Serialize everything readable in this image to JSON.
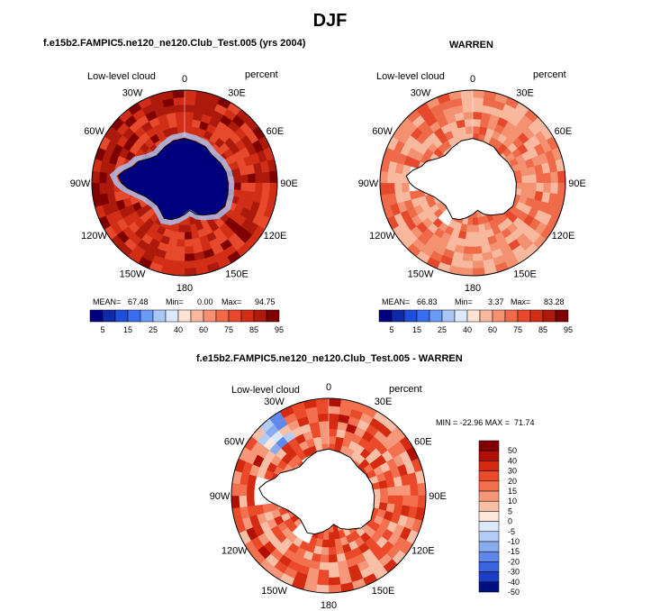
{
  "chart_data": {
    "type": "polar_map",
    "title": "DJF",
    "panels": [
      {
        "id": "model",
        "title": "f.e15b2.FAMPIC5.ne120_ne120.Club_Test.005 (yrs 2004)",
        "left_label": "Low-level cloud",
        "right_label": "percent",
        "mean_label": "MEAN=",
        "mean": "67.48",
        "min_label": "Min=",
        "min": "0.00",
        "max_label": "Max=",
        "max": "94.75",
        "colorbar_ticks": [
          "5",
          "15",
          "25",
          "40",
          "60",
          "75",
          "85",
          "95"
        ]
      },
      {
        "id": "obs",
        "title": "WARREN",
        "left_label": "Low-level cloud",
        "right_label": "percent",
        "mean_label": "MEAN=",
        "mean": "66.83",
        "min_label": "Min=",
        "min": "3.37",
        "max_label": "Max=",
        "max": "83.28",
        "colorbar_ticks": [
          "5",
          "15",
          "25",
          "40",
          "60",
          "75",
          "85",
          "95"
        ]
      },
      {
        "id": "diff",
        "title": "f.e15b2.FAMPIC5.ne120_ne120.Club_Test.005 - WARREN",
        "left_label": "Low-level cloud",
        "right_label": "percent",
        "min_max_text": "MIN = -22.96 MAX =  71.74",
        "colorbar_ticks": [
          "50",
          "40",
          "30",
          "20",
          "15",
          "10",
          "5",
          "0",
          "-5",
          "-10",
          "-15",
          "-20",
          "-30",
          "-40",
          "-50"
        ]
      }
    ],
    "longitude_labels": [
      "0",
      "30E",
      "60E",
      "90E",
      "120E",
      "150E",
      "180",
      "150W",
      "120W",
      "90W",
      "60W",
      "30W"
    ],
    "abs_colors": [
      "#00007f",
      "#0e2aa8",
      "#1f4fd8",
      "#3a6cf0",
      "#6b9af5",
      "#a8c6f8",
      "#dce8fb",
      "#fde3d3",
      "#f7b89e",
      "#f39170",
      "#ee6a48",
      "#e6492b",
      "#d22e16",
      "#ad1a0c",
      "#7f0000"
    ],
    "diff_colors": [
      "#7f0000",
      "#b00f05",
      "#d42a10",
      "#ea4a2a",
      "#f2704e",
      "#f6977a",
      "#f9bea6",
      "#fde7da",
      "#dbe8fb",
      "#b4ccf5",
      "#8aacef",
      "#5f88ea",
      "#3a63e0",
      "#1d3dc4",
      "#00107f"
    ],
    "land_fill": "#ffffff",
    "missing_fill": "#ffffff"
  }
}
